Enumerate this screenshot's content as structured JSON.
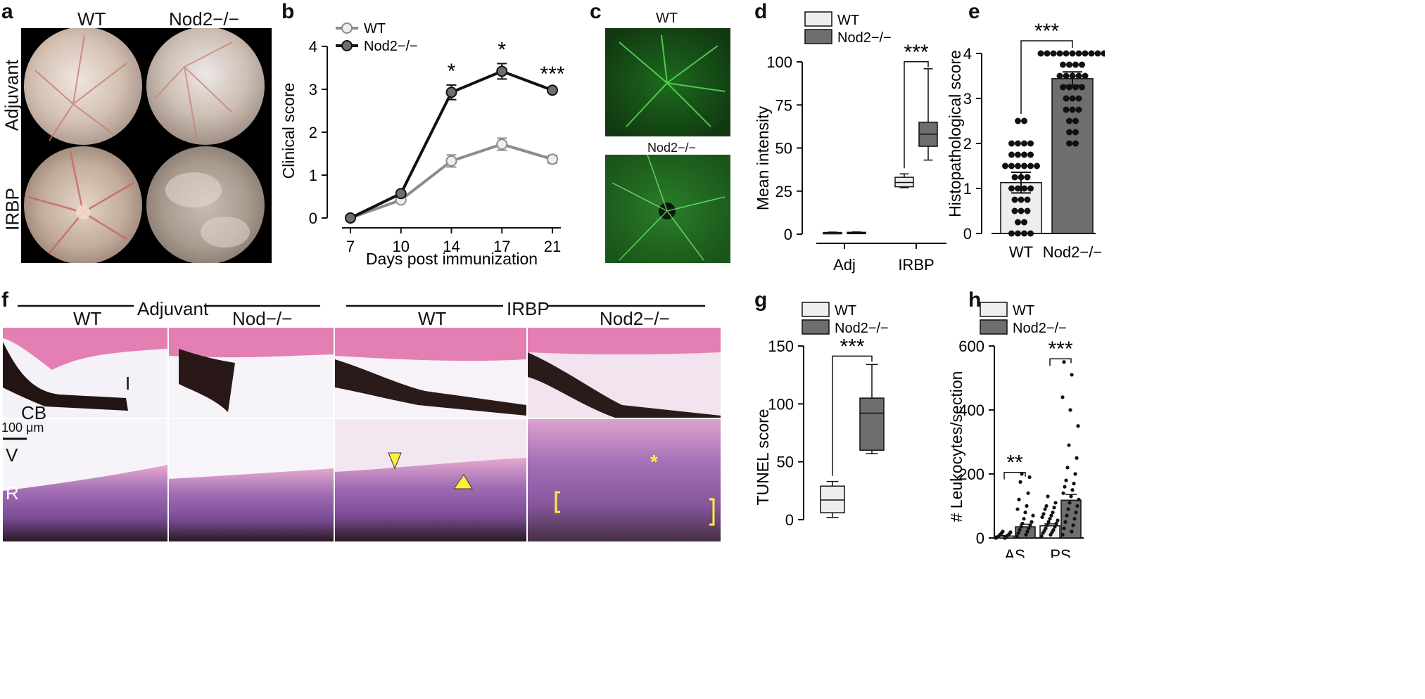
{
  "panel_letters": {
    "a": "a",
    "b": "b",
    "c": "c",
    "d": "d",
    "e": "e",
    "f": "f",
    "g": "g",
    "h": "h"
  },
  "panel_a": {
    "col1": "WT",
    "col2": "Nod2−/−",
    "row1": "Adjuvant",
    "row2": "IRBP"
  },
  "panel_c": {
    "top": "WT",
    "bottom": "Nod2−/−"
  },
  "panel_f": {
    "group1": "Adjuvant",
    "group2": "IRBP",
    "c1": "WT",
    "c2": "Nod−/−",
    "c3": "WT",
    "c4": "Nod2−/−",
    "ann_i": "I",
    "ann_cb": "CB",
    "scale": "100 μm",
    "ann_v": "V",
    "ann_r": "R"
  },
  "colors": {
    "wt_line": "#8c8c8c",
    "nod2_line": "#111111",
    "nod2_fill": "#6e6e6e",
    "wt_fill": "#eeeeee",
    "fundus_bg": "#000000",
    "he_pink": "#d96aa4",
    "he_purple": "#8e5aa6"
  },
  "chart_data": [
    {
      "id": "b",
      "type": "line",
      "xlabel": "Days post immunization",
      "ylabel": "Clinical score",
      "x": [
        7,
        10,
        14,
        17,
        21
      ],
      "ylim": [
        0,
        4
      ],
      "yticks": [
        0,
        1,
        2,
        3,
        4
      ],
      "series": [
        {
          "name": "WT",
          "values": [
            0,
            0.42,
            1.33,
            1.72,
            1.37
          ],
          "err": [
            0,
            0.05,
            0.14,
            0.14,
            0.09
          ]
        },
        {
          "name": "Nod2−/−",
          "values": [
            0,
            0.57,
            2.93,
            3.42,
            2.98
          ],
          "err": [
            0,
            0.06,
            0.17,
            0.18,
            0.05
          ]
        }
      ],
      "sig": [
        {
          "x": 14,
          "label": "*"
        },
        {
          "x": 17,
          "label": "*"
        },
        {
          "x": 21,
          "label": "***"
        }
      ],
      "legend": "top-left"
    },
    {
      "id": "d",
      "type": "box",
      "ylabel": "Mean intensity",
      "categories": [
        "Adj",
        "IRBP"
      ],
      "ylim": [
        0,
        100
      ],
      "yticks": [
        0,
        25,
        50,
        75,
        100
      ],
      "series": [
        {
          "name": "WT",
          "boxes": [
            {
              "min": 0.5,
              "q1": 0.6,
              "median": 0.8,
              "q3": 1.0,
              "max": 1.2
            },
            {
              "min": 27,
              "q1": 27.5,
              "median": 30,
              "q3": 33,
              "max": 35
            }
          ]
        },
        {
          "name": "Nod2−/−",
          "boxes": [
            {
              "min": 0.6,
              "q1": 0.7,
              "median": 0.9,
              "q3": 1.1,
              "max": 1.3
            },
            {
              "min": 43,
              "q1": 51,
              "median": 58,
              "q3": 65,
              "max": 96
            }
          ]
        }
      ],
      "sig": [
        {
          "label": "***"
        }
      ],
      "legend": "top-left"
    },
    {
      "id": "e",
      "type": "bar",
      "ylabel": "Histopathological score",
      "categories": [
        "WT",
        "Nod2−/−"
      ],
      "ylim": [
        0,
        4
      ],
      "yticks": [
        0,
        1,
        2,
        3,
        4
      ],
      "values": [
        1.13,
        3.44
      ],
      "err": [
        0.23,
        0.15
      ],
      "points": [
        [
          2.5,
          2.5,
          2,
          2,
          2,
          2,
          1.75,
          1.75,
          1.75,
          1.75,
          1.5,
          1.5,
          1.5,
          1.5,
          1.5,
          1.5,
          1.25,
          1.25,
          1.25,
          1,
          1,
          1,
          1,
          0.75,
          0.75,
          0.75,
          0.5,
          0.5,
          0.5,
          0.25,
          0.25,
          0,
          0,
          0,
          0
        ],
        [
          4,
          4,
          4,
          4,
          4,
          4,
          4,
          4,
          4,
          4,
          4,
          3.75,
          3.75,
          3.75,
          3.75,
          3.5,
          3.5,
          3.5,
          3.5,
          3.5,
          3.25,
          3.25,
          3.25,
          3.25,
          3,
          3,
          3,
          2.75,
          2.75,
          2.75,
          2.5,
          2.5,
          2.25,
          2.25,
          2,
          2
        ]
      ],
      "sig": [
        {
          "label": "***"
        }
      ]
    },
    {
      "id": "g",
      "type": "box",
      "ylabel": "TUNEL score",
      "categories": [
        "WT",
        "Nod2−/−"
      ],
      "ylim": [
        0,
        150
      ],
      "yticks": [
        0,
        50,
        100,
        150
      ],
      "series": [
        {
          "name": "WT",
          "boxes": [
            {
              "min": 2,
              "q1": 6,
              "median": 17,
              "q3": 29,
              "max": 33
            }
          ]
        },
        {
          "name": "Nod2−/−",
          "boxes": [
            {
              "min": 57,
              "q1": 60,
              "median": 92,
              "q3": 105,
              "max": 134
            }
          ]
        }
      ],
      "sig": [
        {
          "label": "***"
        }
      ],
      "legend": "top-left"
    },
    {
      "id": "h",
      "type": "bar",
      "ylabel": "# Leukocytes/section",
      "categories": [
        "AS",
        "PS"
      ],
      "ylim": [
        0,
        600
      ],
      "yticks": [
        0,
        200,
        400,
        600
      ],
      "series": [
        {
          "name": "WT",
          "values": [
            6,
            38
          ],
          "err": [
            2,
            6
          ],
          "points": [
            [
              0,
              0,
              2,
              3,
              5,
              8,
              10,
              12,
              15,
              18,
              20
            ],
            [
              5,
              10,
              15,
              18,
              22,
              25,
              30,
              35,
              40,
              45,
              50,
              55,
              60,
              65,
              70,
              75,
              80,
              90,
              95,
              100,
              110,
              130
            ]
          ]
        },
        {
          "name": "Nod2−/−",
          "values": [
            35,
            118
          ],
          "err": [
            8,
            18
          ],
          "points": [
            [
              5,
              10,
              15,
              20,
              25,
              30,
              35,
              40,
              45,
              50,
              60,
              70,
              80,
              90,
              100,
              120,
              140,
              175,
              190,
              200
            ],
            [
              10,
              20,
              30,
              40,
              50,
              60,
              70,
              80,
              90,
              100,
              110,
              120,
              130,
              140,
              150,
              160,
              170,
              180,
              200,
              220,
              250,
              290,
              350,
              400,
              440,
              510,
              550
            ]
          ]
        }
      ],
      "sig": [
        {
          "label": "**"
        },
        {
          "label": "***"
        }
      ],
      "legend": "top-left"
    }
  ]
}
